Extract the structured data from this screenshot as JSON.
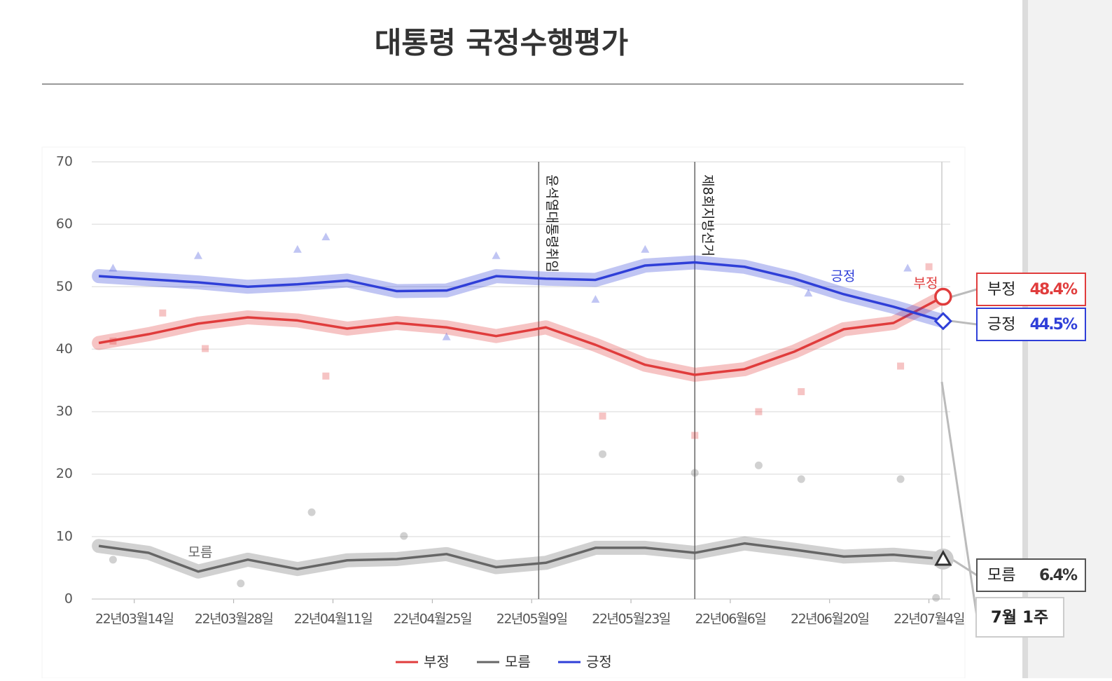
{
  "chart_data": {
    "type": "line",
    "title": "대통령 국정수행평가",
    "x": [
      "2022-03-09",
      "2022-03-16",
      "2022-03-23",
      "2022-03-30",
      "2022-04-06",
      "2022-04-13",
      "2022-04-20",
      "2022-04-27",
      "2022-05-04",
      "2022-05-11",
      "2022-05-18",
      "2022-05-25",
      "2022-06-01",
      "2022-06-08",
      "2022-06-15",
      "2022-06-22",
      "2022-06-29",
      "2022-07-06"
    ],
    "series": [
      {
        "name": "부정",
        "color": "#e03c3c",
        "marker": "circle",
        "end_label": "48.4%",
        "values": [
          41.0,
          42.4,
          44.1,
          45.1,
          44.6,
          43.3,
          44.2,
          43.5,
          42.1,
          43.5,
          40.7,
          37.5,
          35.9,
          36.8,
          39.6,
          43.2,
          44.2,
          48.4
        ],
        "points_x": [
          "2022-03-11",
          "2022-03-24",
          "2022-04-10",
          "2022-03-18",
          "2022-05-19",
          "2022-06-01",
          "2022-06-10",
          "2022-06-16",
          "2022-07-04",
          "2022-06-30"
        ],
        "points_values": [
          41.3,
          40.1,
          35.7,
          45.8,
          29.3,
          26.2,
          30.0,
          33.2,
          53.2,
          37.3
        ]
      },
      {
        "name": "모름",
        "color": "#666666",
        "marker": "triangle",
        "end_label": "6.4%",
        "values": [
          8.5,
          7.4,
          4.4,
          6.3,
          4.8,
          6.2,
          6.4,
          7.2,
          5.1,
          5.8,
          8.2,
          8.2,
          7.4,
          8.9,
          7.9,
          6.8,
          7.1,
          6.4
        ],
        "points_x": [
          "2022-03-11",
          "2022-04-08",
          "2022-04-21",
          "2022-05-19",
          "2022-06-01",
          "2022-06-10",
          "2022-06-16",
          "2022-06-30",
          "2022-07-05",
          "2022-03-29"
        ],
        "points_values": [
          6.3,
          13.9,
          10.1,
          23.2,
          20.2,
          21.4,
          19.2,
          19.2,
          0.2,
          2.5
        ]
      },
      {
        "name": "긍정",
        "color": "#2f3fd8",
        "marker": "diamond",
        "end_label": "44.5%",
        "values": [
          51.7,
          51.2,
          50.7,
          50.0,
          50.4,
          51.0,
          49.3,
          49.4,
          51.7,
          51.3,
          51.1,
          53.4,
          53.9,
          53.2,
          51.3,
          48.8,
          46.8,
          44.5
        ],
        "points_x": [
          "2022-03-11",
          "2022-03-23",
          "2022-04-06",
          "2022-04-10",
          "2022-05-04",
          "2022-05-25",
          "2022-06-17",
          "2022-07-01",
          "2022-05-18",
          "2022-04-27"
        ],
        "points_values": [
          53.0,
          55.0,
          56.0,
          58.0,
          55.0,
          56.0,
          49.0,
          53.0,
          48.0,
          42.0
        ]
      }
    ],
    "events": [
      {
        "x": "2022-05-10",
        "label": "윤석열대통령취임"
      },
      {
        "x": "2022-06-01",
        "label": "제8회지방선거"
      }
    ],
    "end_period": "7월 1주",
    "xlim": [
      "2022-03-08",
      "2022-07-07"
    ],
    "xticks": [
      {
        "value": "2022-03-14",
        "label": "22년03월14일"
      },
      {
        "value": "2022-03-28",
        "label": "22년03월28일"
      },
      {
        "value": "2022-04-11",
        "label": "22년04월11일"
      },
      {
        "value": "2022-04-25",
        "label": "22년04월25일"
      },
      {
        "value": "2022-05-09",
        "label": "22년05월9일"
      },
      {
        "value": "2022-05-23",
        "label": "22년05월23일"
      },
      {
        "value": "2022-06-06",
        "label": "22년06월6일"
      },
      {
        "value": "2022-06-20",
        "label": "22년06월20일"
      },
      {
        "value": "2022-07-04",
        "label": "22년07월4일"
      }
    ],
    "ylim": [
      0,
      70
    ],
    "yticks": [
      0,
      10,
      20,
      30,
      40,
      50,
      60,
      70
    ],
    "grid": true
  }
}
